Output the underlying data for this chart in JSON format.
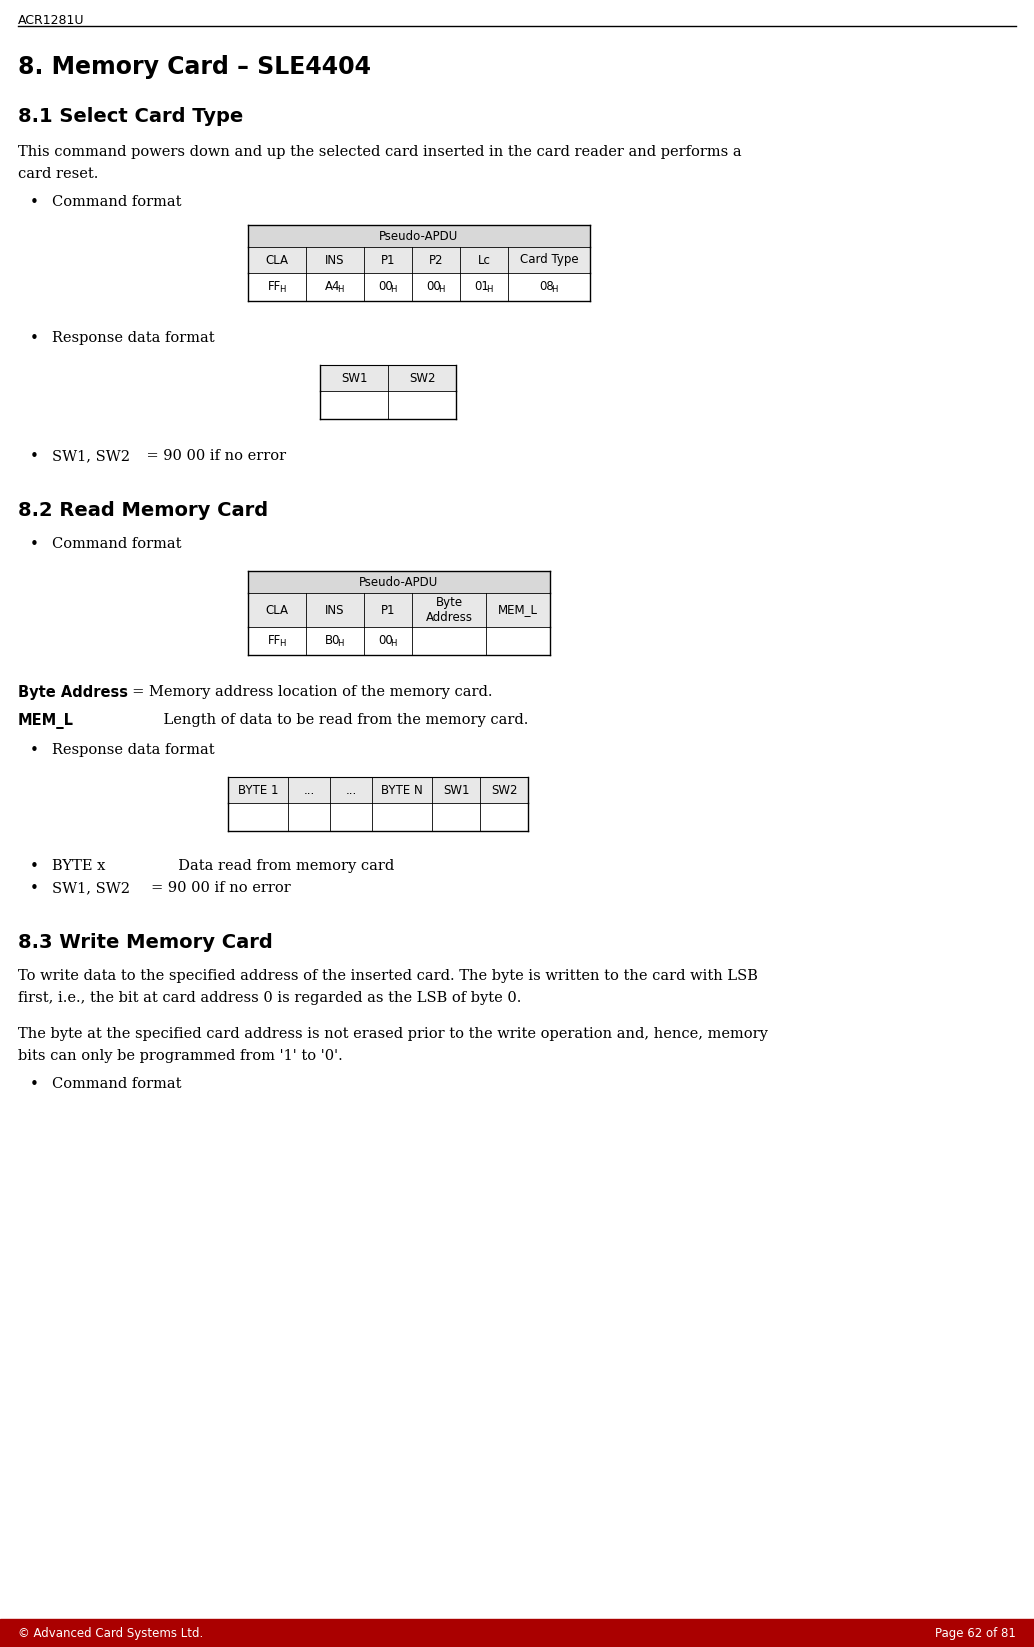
{
  "header_text": "ACR1281U",
  "footer_left": "© Advanced Card Systems Ltd.",
  "footer_right": "Page 62 of 81",
  "footer_bg": "#aa0000",
  "section_title": "8. Memory Card – SLE4404",
  "sub1_title": "8.1 Select Card Type",
  "sub1_body_line1": "This command powers down and up the selected card inserted in the card reader and performs a",
  "sub1_body_line2": "card reset.",
  "bullet_command_format": "Command format",
  "table1_header": "Pseudo-APDU",
  "table1_col_headers": [
    "CLA",
    "INS",
    "P1",
    "P2",
    "Lc",
    "Card Type"
  ],
  "table1_values": [
    "FF H",
    "A4 H",
    "00 H",
    "00 H",
    "01 H",
    "08 H"
  ],
  "bullet_response_format": "Response data format",
  "table2_col_headers": [
    "SW1",
    "SW2"
  ],
  "sub2_title": "8.2 Read Memory Card",
  "bullet_command_format2": "Command format",
  "table3_header": "Pseudo-APDU",
  "table3_col_headers": [
    "CLA",
    "INS",
    "P1",
    "Byte\nAddress",
    "MEM_L"
  ],
  "table3_values": [
    "FF H",
    "B0 H",
    "00 H",
    "",
    ""
  ],
  "byte_address_label": "Byte Address",
  "byte_address_text": "  = Memory address location of the memory card.",
  "mem_l_label": "MEM_L",
  "mem_l_text": "Length of data to be read from the memory card.",
  "bullet_response_format2": "Response data format",
  "table4_col_headers": [
    "BYTE 1",
    "...",
    "...",
    "BYTE N",
    "SW1",
    "SW2"
  ],
  "sub3_title": "8.3 Write Memory Card",
  "sub3_body1_line1": "To write data to the specified address of the inserted card. The byte is written to the card with LSB",
  "sub3_body1_line2": "first, i.e., the bit at card address 0 is regarded as the LSB of byte 0.",
  "sub3_body2_line1": "The byte at the specified card address is not erased prior to the write operation and, hence, memory",
  "sub3_body2_line2": "bits can only be programmed from '1' to '0'.",
  "bullet_command_format3": "Command format",
  "header_line_color": "#000000",
  "table_border_color": "#000000",
  "table_header_bg": "#d8d8d8",
  "table_col_header_bg": "#e8e8e8",
  "text_color": "#000000",
  "bg_color": "#ffffff"
}
